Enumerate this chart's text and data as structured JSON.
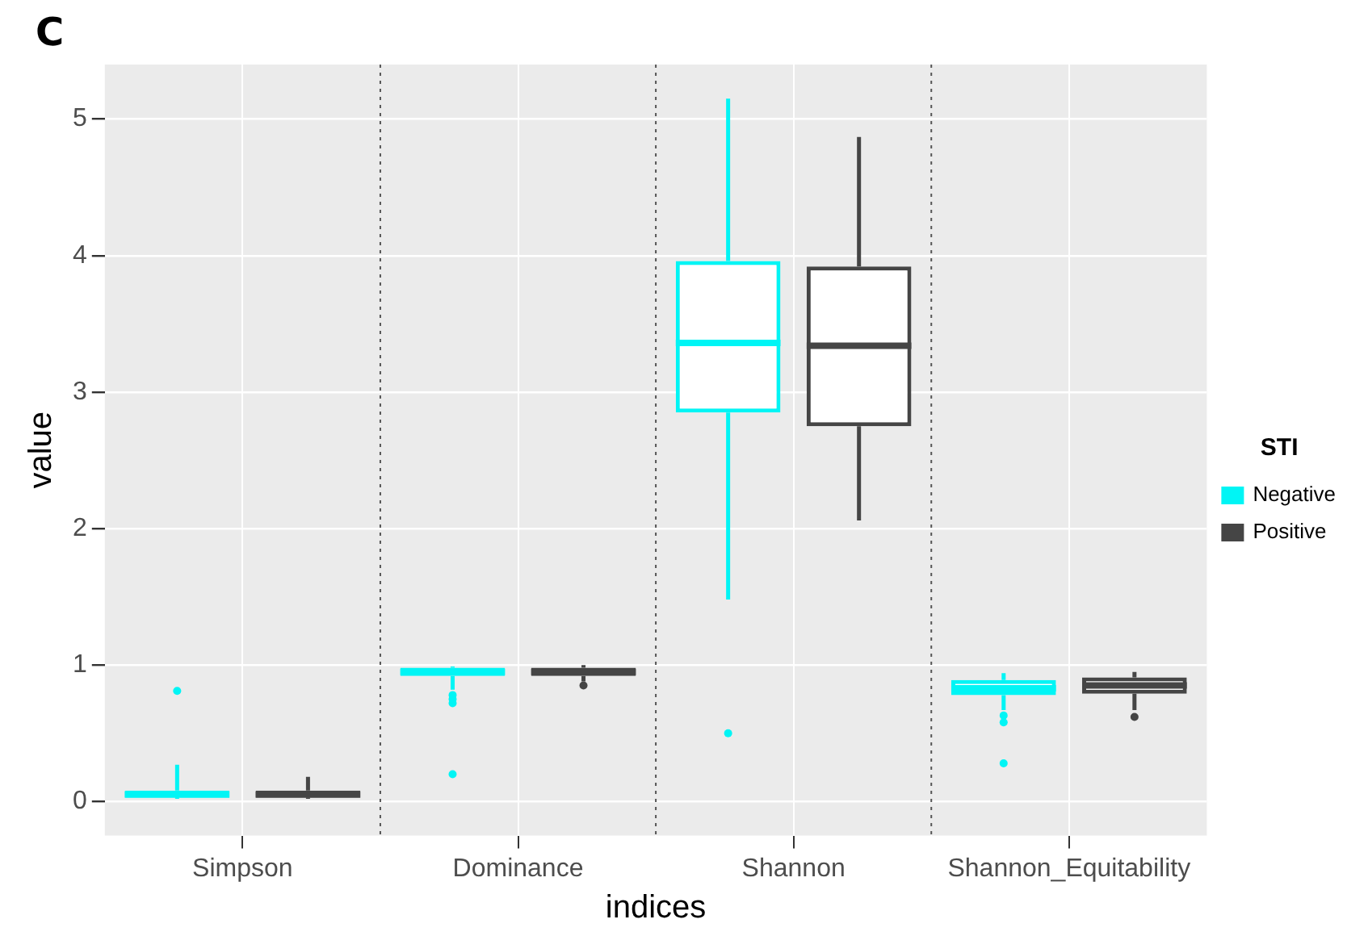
{
  "chart_data": {
    "type": "box",
    "title": "C",
    "xlabel": "indices",
    "ylabel": "value",
    "legend_title": "STI",
    "legend": "right",
    "grid": true,
    "categories": [
      "Simpson",
      "Dominance",
      "Shannon",
      "Shannon_Equitability"
    ],
    "ylim": [
      -0.25,
      5.4
    ],
    "yticks": [
      0,
      1,
      2,
      3,
      4,
      5
    ],
    "series": [
      {
        "name": "Negative",
        "color": "#00f5f5",
        "boxes": [
          {
            "low": 0.02,
            "q1": 0.03,
            "median": 0.05,
            "q3": 0.08,
            "high": 0.27,
            "outliers": [
              0.81
            ]
          },
          {
            "low": 0.82,
            "q1": 0.92,
            "median": 0.95,
            "q3": 0.98,
            "high": 0.99,
            "outliers": [
              0.78,
              0.75,
              0.72,
              0.2
            ]
          },
          {
            "low": 1.48,
            "q1": 2.85,
            "median": 3.36,
            "q3": 3.96,
            "high": 5.15,
            "outliers": [
              0.5
            ]
          },
          {
            "low": 0.67,
            "q1": 0.78,
            "median": 0.83,
            "q3": 0.89,
            "high": 0.94,
            "outliers": [
              0.63,
              0.58,
              0.28
            ]
          }
        ]
      },
      {
        "name": "Positive",
        "color": "#454545",
        "boxes": [
          {
            "low": 0.02,
            "q1": 0.03,
            "median": 0.05,
            "q3": 0.08,
            "high": 0.18
          },
          {
            "low": 0.88,
            "q1": 0.92,
            "median": 0.95,
            "q3": 0.98,
            "high": 1.0,
            "outliers": [
              0.85
            ]
          },
          {
            "low": 2.06,
            "q1": 2.75,
            "median": 3.34,
            "q3": 3.92,
            "high": 4.87
          },
          {
            "low": 0.67,
            "q1": 0.79,
            "median": 0.85,
            "q3": 0.91,
            "high": 0.95,
            "outliers": [
              0.62
            ]
          }
        ]
      }
    ]
  }
}
